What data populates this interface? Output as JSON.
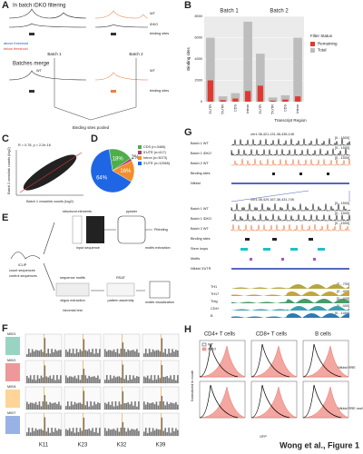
{
  "footer": "Wong et al., Figure 1",
  "panel_labels": [
    "A",
    "B",
    "C",
    "D",
    "E",
    "F",
    "G",
    "H"
  ],
  "panel_a": {
    "title_filter": "In batch iDKO filtering",
    "batch1": "Batch 1",
    "batch2": "Batch 2",
    "title_merge": "Batches merge",
    "pooled": "Binding sites pooled",
    "wt": "WT",
    "idko": "iDKO",
    "sites": "binding sites",
    "above": "above threshold",
    "below": "below threshold"
  },
  "chart_data": [
    {
      "type": "bar",
      "groups": [
        "Batch 1",
        "Batch 2"
      ],
      "categories": [
        "3'UTR",
        "5'UTR",
        "CDS",
        "Intron",
        "3'UTR",
        "5'UTR",
        "CDS",
        "Intron"
      ],
      "ylabel": "Binding sites",
      "xlabel": "Transcript Region",
      "legend_title": "Filter Status",
      "series": [
        {
          "name": "Remaining",
          "color": "#e03a30",
          "values": [
            2000,
            150,
            300,
            1000,
            1500,
            100,
            200,
            500
          ]
        },
        {
          "name": "Total",
          "color": "#bdbdbd",
          "values": [
            6000,
            500,
            800,
            7500,
            4500,
            400,
            600,
            6000
          ]
        }
      ],
      "ylim": [
        0,
        8000
      ],
      "yticks": [
        0,
        2000,
        4000,
        6000,
        8000
      ],
      "grid": true
    },
    {
      "type": "pie",
      "categories": [
        "CDS (n=3465)",
        "5'UTR (n=417)",
        "Intron (n=3073)",
        "3'UTR (n=12565)"
      ],
      "values": [
        18,
        2,
        16,
        64
      ],
      "value_labels": [
        "18%",
        "2%",
        "16%",
        "64%"
      ],
      "colors": [
        "#4daf4a",
        "#b03a6a",
        "#f28e2b",
        "#1f66e5"
      ]
    }
  ],
  "panel_c": {
    "annotation": "R = 0.78, p < 2.2e-16",
    "xlabel": "Batch 1 crosslink counts (log2)",
    "ylabel": "Batch 2 crosslink counts (log2)"
  },
  "panel_e": {
    "iclip": "iCLIP",
    "structural": "structural elements",
    "pysster": "pysster",
    "input": "input sequence",
    "pbinding": "Pbinding",
    "motifs_extraction": "motifs extraction",
    "count": "count sequences",
    "control": "control sequences",
    "sequence_motifs": "sequence motifs",
    "rsat": "RSAT",
    "oligos": "oligos extraction",
    "pattern": "pattern assembly",
    "visualization": "motifs visualization",
    "binomial": "binomial test"
  },
  "panel_f": {
    "motifs": [
      "M001",
      "M002",
      "M004",
      "M007"
    ],
    "columns": [
      "K11",
      "K23",
      "K32",
      "K39"
    ]
  },
  "panel_g": {
    "locus1": "chr1:36,421,131-36,436,148",
    "locus2": "chr1:36,429,167-36,431,745",
    "tracks1": [
      "Batch 1 WT",
      "Batch 1 iDKO",
      "Batch 2 WT",
      "Binding sites",
      "Nfkbid"
    ],
    "ranges1": [
      "[0 - 1500]",
      "[0 - 1500]",
      "[0 - 1500]"
    ],
    "tracks2": [
      "Batch 1 WT",
      "Batch 1 iDKO",
      "Batch 2 WT",
      "Binding sites",
      "Stem loops",
      "Motifs",
      "Nfkbid 3'UTR"
    ],
    "ranges2": [
      "[0 - 1500]",
      "[0 - 1500]",
      "[0 - 1500]"
    ],
    "cells": [
      "TH1",
      "TH17",
      "Treg",
      "CD4+",
      "B"
    ],
    "ranges3": [
      "[0 - 700]",
      "[0 - 400]",
      "[0 - 400]",
      "[0 - 400]",
      "[0 - 1400]"
    ]
  },
  "panel_h": {
    "columns": [
      "CD4+ T cells",
      "CD8+ T cells",
      "B cells"
    ],
    "rows": [
      "Nfkbid RRE",
      "Nfkbid RRE mutSL1"
    ],
    "legend": [
      "WT",
      "iDKO"
    ],
    "ylabel": "Normalized to mode",
    "xlabel": "GFP"
  }
}
